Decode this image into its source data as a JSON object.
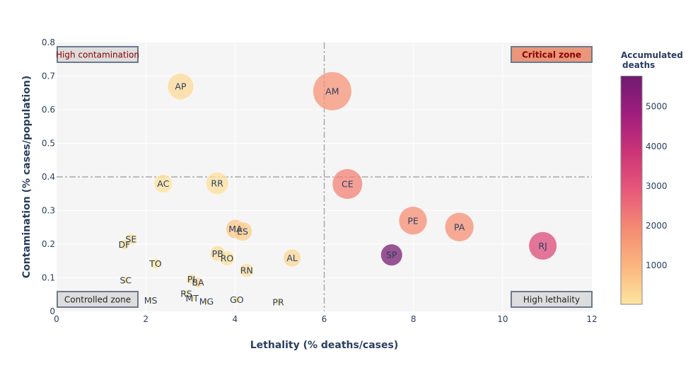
{
  "chart_data": {
    "type": "scatter",
    "subtype": "bubble",
    "title": "",
    "xlabel": "Lethality (% deaths/cases)",
    "ylabel": "Contamination (% cases/population)",
    "xlim": [
      0,
      12
    ],
    "ylim": [
      0,
      0.8
    ],
    "xticks": [
      0,
      2,
      4,
      6,
      8,
      10,
      12
    ],
    "xtick_labels": [
      "0",
      "2",
      "4",
      "6",
      "8",
      "10",
      "12"
    ],
    "yticks": [
      0,
      0.1,
      0.2,
      0.3,
      0.4,
      0.5,
      0.6,
      0.7,
      0.8
    ],
    "ytick_labels": [
      "0",
      "0.1",
      "0.2",
      "0.3",
      "0.4",
      "0.5",
      "0.6",
      "0.7",
      "0.8"
    ],
    "grid": true,
    "size_encoding": "bubble area proportional to lethality × contamination",
    "reference_lines": [
      {
        "axis": "x",
        "value": 6,
        "style": "dashdot"
      },
      {
        "axis": "y",
        "value": 0.4,
        "style": "dashdot"
      }
    ],
    "colorbar": {
      "title_line1": "Accumulated",
      "title_line2": "deaths",
      "range": [
        20,
        5770
      ],
      "ticks": [
        1000,
        2000,
        3000,
        4000,
        5000
      ],
      "tick_labels": [
        "1000",
        "2000",
        "3000",
        "4000",
        "5000"
      ],
      "colorscale": [
        "#fde5a0",
        "#fbb67f",
        "#f58a73",
        "#e7587a",
        "#cc3477",
        "#a01d7e",
        "#6f1c70"
      ]
    },
    "annotations": [
      {
        "text": "High contamination",
        "position": "top-left",
        "bg": "#dddddd",
        "color": "#8b0000",
        "bold": false
      },
      {
        "text": "Critical zone",
        "position": "top-right",
        "bg": "#e9967a",
        "color": "#8b0000",
        "bold": true
      },
      {
        "text": "Controlled zone",
        "position": "bottom-left",
        "bg": "#dddddd",
        "color": "#222222",
        "bold": false
      },
      {
        "text": "High lethality",
        "position": "bottom-right",
        "bg": "#dddddd",
        "color": "#222222",
        "bold": false
      }
    ],
    "points": [
      {
        "label": "AP",
        "x": 2.78,
        "y": 0.669,
        "deaths": 250
      },
      {
        "label": "AM",
        "x": 6.18,
        "y": 0.655,
        "deaths": 1750
      },
      {
        "label": "AC",
        "x": 2.39,
        "y": 0.38,
        "deaths": 120
      },
      {
        "label": "RR",
        "x": 3.6,
        "y": 0.381,
        "deaths": 150
      },
      {
        "label": "CE",
        "x": 6.52,
        "y": 0.379,
        "deaths": 2100
      },
      {
        "label": "PE",
        "x": 7.99,
        "y": 0.27,
        "deaths": 1850
      },
      {
        "label": "PA",
        "x": 9.03,
        "y": 0.251,
        "deaths": 1800
      },
      {
        "label": "RJ",
        "x": 10.9,
        "y": 0.195,
        "deaths": 3300
      },
      {
        "label": "SP",
        "x": 7.51,
        "y": 0.168,
        "deaths": 5600
      },
      {
        "label": "MA",
        "x": 4.01,
        "y": 0.245,
        "deaths": 650
      },
      {
        "label": "ES",
        "x": 4.17,
        "y": 0.238,
        "deaths": 500
      },
      {
        "label": "SE",
        "x": 1.67,
        "y": 0.215,
        "deaths": 80
      },
      {
        "label": "DF",
        "x": 1.52,
        "y": 0.199,
        "deaths": 90
      },
      {
        "label": "PB",
        "x": 3.61,
        "y": 0.172,
        "deaths": 250
      },
      {
        "label": "RO",
        "x": 3.82,
        "y": 0.158,
        "deaths": 110
      },
      {
        "label": "AL",
        "x": 5.28,
        "y": 0.159,
        "deaths": 320
      },
      {
        "label": "TO",
        "x": 2.22,
        "y": 0.142,
        "deaths": 40
      },
      {
        "label": "RN",
        "x": 4.26,
        "y": 0.122,
        "deaths": 180
      },
      {
        "label": "SC",
        "x": 1.55,
        "y": 0.093,
        "deaths": 80
      },
      {
        "label": "PI",
        "x": 3.02,
        "y": 0.096,
        "deaths": 100
      },
      {
        "label": "BA",
        "x": 3.17,
        "y": 0.086,
        "deaths": 400
      },
      {
        "label": "RS",
        "x": 2.91,
        "y": 0.053,
        "deaths": 80
      },
      {
        "label": "MT",
        "x": 3.04,
        "y": 0.039,
        "deaths": 30
      },
      {
        "label": "MS",
        "x": 2.11,
        "y": 0.033,
        "deaths": 20
      },
      {
        "label": "MG",
        "x": 3.36,
        "y": 0.029,
        "deaths": 200
      },
      {
        "label": "GO",
        "x": 4.04,
        "y": 0.035,
        "deaths": 80
      },
      {
        "label": "PR",
        "x": 4.97,
        "y": 0.027,
        "deaths": 130
      }
    ]
  }
}
